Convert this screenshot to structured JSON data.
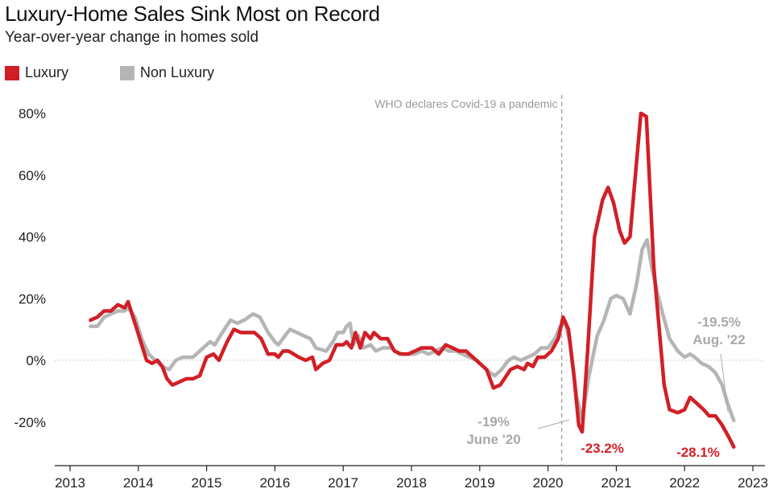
{
  "header": {
    "title": "Luxury-Home Sales Sink Most on Record",
    "subtitle": "Year-over-year change in homes sold"
  },
  "legend": [
    {
      "label": "Luxury",
      "color": "#d21f26"
    },
    {
      "label": "Non Luxury",
      "color": "#b5b5b5"
    }
  ],
  "colors": {
    "luxury": "#d21f26",
    "non_luxury": "#b5b5b5",
    "event_line": "#9a9a9a",
    "zero_line": "#bdbdbd"
  },
  "chart_data": {
    "type": "line",
    "title": "Luxury-Home Sales Sink Most on Record",
    "subtitle": "Year-over-year change in homes sold",
    "xlabel": "",
    "ylabel": "",
    "ylim": [
      -35,
      82
    ],
    "xlim": [
      2013,
      2023.1
    ],
    "yticks": [
      80,
      60,
      40,
      20,
      0,
      -20
    ],
    "ytick_labels": [
      "80%",
      "60%",
      "40%",
      "20%",
      "0%",
      "-20%"
    ],
    "xticks": [
      2013,
      2014,
      2015,
      2016,
      2017,
      2018,
      2019,
      2020,
      2021,
      2022,
      2023
    ],
    "xtick_labels": [
      "2013",
      "2014",
      "2015",
      "2016",
      "2017",
      "2018",
      "2019",
      "2020",
      "2021",
      "2022",
      "2023"
    ],
    "grid": false,
    "legend_position": "top-left",
    "series": [
      {
        "name": "Luxury",
        "color": "#d21f26",
        "points": [
          [
            2013.3,
            13
          ],
          [
            2013.4,
            14
          ],
          [
            2013.5,
            16
          ],
          [
            2013.6,
            16
          ],
          [
            2013.7,
            18
          ],
          [
            2013.8,
            17
          ],
          [
            2013.85,
            19
          ],
          [
            2013.95,
            12
          ],
          [
            2014.05,
            5
          ],
          [
            2014.12,
            0
          ],
          [
            2014.2,
            -1
          ],
          [
            2014.28,
            0
          ],
          [
            2014.35,
            -2
          ],
          [
            2014.42,
            -6
          ],
          [
            2014.5,
            -8
          ],
          [
            2014.6,
            -7
          ],
          [
            2014.7,
            -6
          ],
          [
            2014.8,
            -6
          ],
          [
            2014.9,
            -5
          ],
          [
            2015.0,
            1
          ],
          [
            2015.1,
            2
          ],
          [
            2015.18,
            0
          ],
          [
            2015.3,
            6
          ],
          [
            2015.4,
            10
          ],
          [
            2015.5,
            9
          ],
          [
            2015.6,
            9
          ],
          [
            2015.7,
            9
          ],
          [
            2015.8,
            7
          ],
          [
            2015.9,
            2
          ],
          [
            2016.0,
            2
          ],
          [
            2016.05,
            1
          ],
          [
            2016.12,
            3
          ],
          [
            2016.2,
            3
          ],
          [
            2016.35,
            1
          ],
          [
            2016.45,
            0
          ],
          [
            2016.55,
            1
          ],
          [
            2016.6,
            -3
          ],
          [
            2016.7,
            -1
          ],
          [
            2016.8,
            0
          ],
          [
            2016.9,
            5
          ],
          [
            2017.0,
            5
          ],
          [
            2017.05,
            6
          ],
          [
            2017.12,
            4
          ],
          [
            2017.18,
            9
          ],
          [
            2017.25,
            4
          ],
          [
            2017.32,
            9
          ],
          [
            2017.4,
            7
          ],
          [
            2017.45,
            9
          ],
          [
            2017.55,
            7
          ],
          [
            2017.65,
            7
          ],
          [
            2017.75,
            3
          ],
          [
            2017.85,
            2
          ],
          [
            2017.95,
            2
          ],
          [
            2018.05,
            3
          ],
          [
            2018.15,
            4
          ],
          [
            2018.3,
            4
          ],
          [
            2018.4,
            2
          ],
          [
            2018.5,
            5
          ],
          [
            2018.6,
            4
          ],
          [
            2018.7,
            3
          ],
          [
            2018.8,
            3
          ],
          [
            2018.9,
            1
          ],
          [
            2019.0,
            -1
          ],
          [
            2019.1,
            -3
          ],
          [
            2019.2,
            -9
          ],
          [
            2019.3,
            -8
          ],
          [
            2019.45,
            -3
          ],
          [
            2019.55,
            -2
          ],
          [
            2019.65,
            -3
          ],
          [
            2019.7,
            -1
          ],
          [
            2019.78,
            -2
          ],
          [
            2019.85,
            1
          ],
          [
            2019.95,
            1
          ],
          [
            2020.05,
            3
          ],
          [
            2020.15,
            7
          ],
          [
            2020.22,
            14
          ],
          [
            2020.3,
            10
          ],
          [
            2020.38,
            -5
          ],
          [
            2020.45,
            -21
          ],
          [
            2020.5,
            -23.2
          ],
          [
            2020.58,
            3
          ],
          [
            2020.68,
            40
          ],
          [
            2020.8,
            52
          ],
          [
            2020.88,
            56
          ],
          [
            2020.96,
            51
          ],
          [
            2021.05,
            42
          ],
          [
            2021.12,
            38
          ],
          [
            2021.2,
            40
          ],
          [
            2021.28,
            60
          ],
          [
            2021.36,
            80
          ],
          [
            2021.44,
            79
          ],
          [
            2021.55,
            30
          ],
          [
            2021.7,
            -8
          ],
          [
            2021.78,
            -16
          ],
          [
            2021.9,
            -17
          ],
          [
            2022.0,
            -16
          ],
          [
            2022.08,
            -12
          ],
          [
            2022.18,
            -14
          ],
          [
            2022.28,
            -16
          ],
          [
            2022.36,
            -18
          ],
          [
            2022.45,
            -18
          ],
          [
            2022.55,
            -21
          ],
          [
            2022.65,
            -25
          ],
          [
            2022.72,
            -28.1
          ]
        ]
      },
      {
        "name": "Non Luxury",
        "color": "#b5b5b5",
        "points": [
          [
            2013.3,
            11
          ],
          [
            2013.4,
            11
          ],
          [
            2013.5,
            14
          ],
          [
            2013.6,
            15
          ],
          [
            2013.7,
            16
          ],
          [
            2013.8,
            16
          ],
          [
            2013.85,
            17
          ],
          [
            2013.95,
            14
          ],
          [
            2014.05,
            7
          ],
          [
            2014.15,
            2
          ],
          [
            2014.25,
            0
          ],
          [
            2014.35,
            -2
          ],
          [
            2014.45,
            -3
          ],
          [
            2014.55,
            0
          ],
          [
            2014.65,
            1
          ],
          [
            2014.8,
            1
          ],
          [
            2014.95,
            4
          ],
          [
            2015.05,
            6
          ],
          [
            2015.12,
            5
          ],
          [
            2015.2,
            8
          ],
          [
            2015.35,
            13
          ],
          [
            2015.45,
            12
          ],
          [
            2015.55,
            13
          ],
          [
            2015.68,
            15
          ],
          [
            2015.78,
            14
          ],
          [
            2015.9,
            9
          ],
          [
            2016.0,
            6
          ],
          [
            2016.05,
            5
          ],
          [
            2016.15,
            8
          ],
          [
            2016.22,
            10
          ],
          [
            2016.32,
            9
          ],
          [
            2016.42,
            8
          ],
          [
            2016.52,
            7
          ],
          [
            2016.6,
            4
          ],
          [
            2016.75,
            3
          ],
          [
            2016.85,
            6
          ],
          [
            2016.92,
            9
          ],
          [
            2017.0,
            9
          ],
          [
            2017.05,
            11
          ],
          [
            2017.1,
            12
          ],
          [
            2017.15,
            5
          ],
          [
            2017.22,
            8
          ],
          [
            2017.3,
            4
          ],
          [
            2017.4,
            5
          ],
          [
            2017.48,
            3
          ],
          [
            2017.58,
            4
          ],
          [
            2017.7,
            4
          ],
          [
            2017.82,
            2
          ],
          [
            2017.95,
            2
          ],
          [
            2018.05,
            2
          ],
          [
            2018.15,
            3
          ],
          [
            2018.25,
            2
          ],
          [
            2018.35,
            3
          ],
          [
            2018.45,
            4
          ],
          [
            2018.55,
            3
          ],
          [
            2018.65,
            3
          ],
          [
            2018.75,
            2
          ],
          [
            2018.85,
            1
          ],
          [
            2018.95,
            0
          ],
          [
            2019.05,
            -2
          ],
          [
            2019.15,
            -4
          ],
          [
            2019.22,
            -5
          ],
          [
            2019.32,
            -3
          ],
          [
            2019.42,
            0
          ],
          [
            2019.5,
            1
          ],
          [
            2019.6,
            0
          ],
          [
            2019.7,
            1
          ],
          [
            2019.8,
            2
          ],
          [
            2019.9,
            4
          ],
          [
            2020.0,
            4
          ],
          [
            2020.1,
            7
          ],
          [
            2020.18,
            11
          ],
          [
            2020.25,
            12
          ],
          [
            2020.32,
            6
          ],
          [
            2020.42,
            -12
          ],
          [
            2020.5,
            -19
          ],
          [
            2020.6,
            -5
          ],
          [
            2020.72,
            8
          ],
          [
            2020.82,
            13
          ],
          [
            2020.92,
            20
          ],
          [
            2021.0,
            21
          ],
          [
            2021.1,
            20
          ],
          [
            2021.2,
            15
          ],
          [
            2021.3,
            25
          ],
          [
            2021.38,
            36
          ],
          [
            2021.45,
            39
          ],
          [
            2021.52,
            30
          ],
          [
            2021.6,
            22
          ],
          [
            2021.68,
            15
          ],
          [
            2021.78,
            7
          ],
          [
            2021.9,
            3
          ],
          [
            2022.0,
            1
          ],
          [
            2022.08,
            2
          ],
          [
            2022.15,
            1
          ],
          [
            2022.25,
            -1
          ],
          [
            2022.35,
            -2
          ],
          [
            2022.45,
            -4
          ],
          [
            2022.55,
            -8
          ],
          [
            2022.63,
            -14
          ],
          [
            2022.72,
            -19.5
          ]
        ]
      }
    ],
    "annotations": {
      "event": {
        "label": "WHO declares Covid-19 a pandemic",
        "x": 2020.2
      },
      "non_luxury_low": {
        "value": "-19%",
        "date": "June '20",
        "x": 2020.45,
        "y": -19
      },
      "luxury_low": {
        "value": "-23.2%",
        "x": 2020.5,
        "y": -23.2
      },
      "non_luxury_last": {
        "value": "-19.5%",
        "date": "Aug. '22",
        "x": 2022.72,
        "y": -19.5
      },
      "luxury_last": {
        "value": "-28.1%",
        "x": 2022.72,
        "y": -28.1
      }
    }
  }
}
